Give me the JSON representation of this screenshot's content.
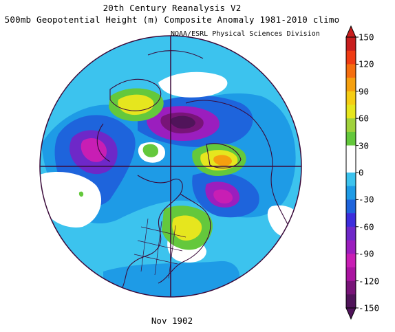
{
  "header": {
    "title_line1": "20th Century Reanalysis V2",
    "title_line2": "500mb Geopotential Height (m) Composite Anomaly 1981-2010 climo",
    "credit": "NOAA/ESRL Physical Sciences Division"
  },
  "footer": {
    "date": "Nov 1902"
  },
  "colorbar": {
    "labels": [
      "150",
      "120",
      "90",
      "60",
      "30",
      "0",
      "-30",
      "-60",
      "-90",
      "-120",
      "-150"
    ],
    "colors_top_to_bottom": [
      "#c81e1e",
      "#f03c14",
      "#f56e0f",
      "#f5a00f",
      "#f5cd14",
      "#e6e61e",
      "#a0d23c",
      "#64c83c",
      "#ffffff",
      "#ffffff",
      "#3cc3ee",
      "#1e9be6",
      "#1e64dc",
      "#3c2ddc",
      "#6e28c8",
      "#9b1ebe",
      "#c81eb4",
      "#aa14a0",
      "#781478",
      "#50145a"
    ]
  },
  "map": {
    "projection": "north-polar-stereographic",
    "colors": {
      "ocean_light": "#3cc3ee",
      "mid_blue": "#1e9be6",
      "blue": "#1e64dc",
      "indigo": "#3c2ddc",
      "purple": "#9b1ebe",
      "magenta": "#c81eb4",
      "dark_purple": "#50145a",
      "positive_green": "#64c83c",
      "positive_yellow": "#e6e61e",
      "positive_orange": "#f5a00f",
      "neutral": "#ffffff",
      "coastline": "#3a0a3a"
    }
  }
}
